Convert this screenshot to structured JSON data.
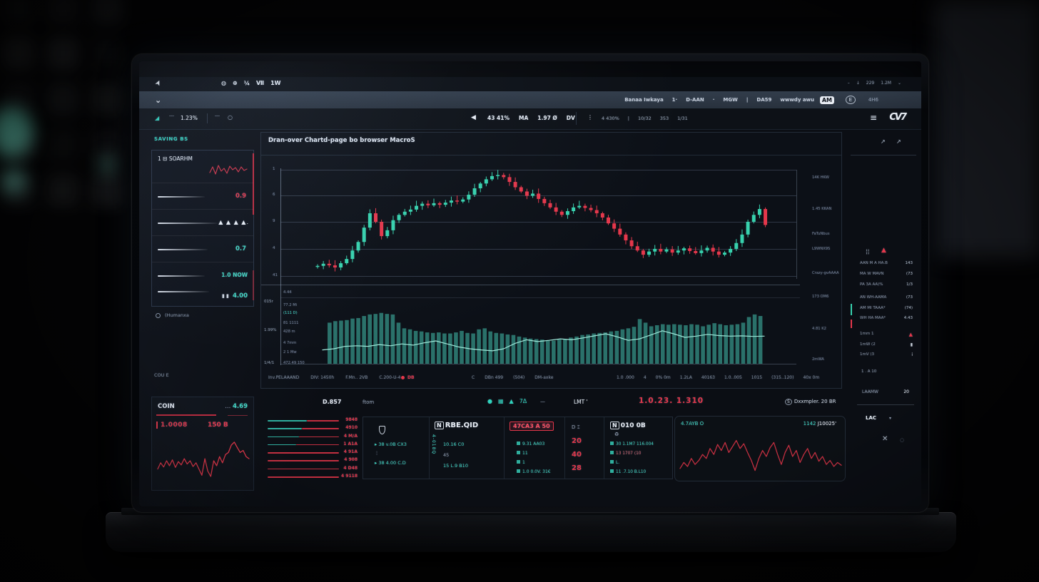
{
  "colors": {
    "teal": "#3fd6c2",
    "red": "#e4374b",
    "up": "#37d1ad",
    "down": "#e4374b",
    "volume_bar": "#2e7a72",
    "volume_line": "#9fe9da",
    "accent_red": "#b8293c"
  },
  "topbar": {
    "icons": [
      "◍",
      "⊕",
      "¼",
      "Ⅶ",
      "1W"
    ],
    "right_items": [
      "–",
      "↓",
      "229",
      "1.2M",
      "⌄"
    ]
  },
  "navbar": {
    "chevron": "⌄",
    "items": [
      "Banaa Iwkaya",
      "1·",
      "D-AAN",
      "·",
      "MGW",
      "|",
      "DA59",
      "wwwdy awu"
    ],
    "badge_text": "AM",
    "badge2_text": "E",
    "end_text": "4H6"
  },
  "toolbar": {
    "left_icon": "◢",
    "squiggle": "﹋",
    "left_pct": "1.23%",
    "circle": "○",
    "play_icon": "◀",
    "center_items": [
      "43 41%",
      "MA",
      "1.97 Ø",
      "DV"
    ],
    "dots_icon": "⋮",
    "right_items": [
      "4 430%",
      "|",
      "10/32",
      "353",
      "1/31"
    ],
    "menu_icon": "≡",
    "logo": "CV7"
  },
  "watch_label": "SAVING BS",
  "watch_panel": {
    "row1_title": "1 ⊟ SOARHM",
    "row2_value": "0.9",
    "row3_triangles": "▲ ▲ ▲ ▲.",
    "row4_value": "0.7",
    "row5_value": "1.0 NOW",
    "row6_bars": "▮ ▮",
    "row6_value": "4.00"
  },
  "left_misc": {
    "row1": "(Humanxa",
    "row2": "COU E"
  },
  "coin_card": {
    "title": "COIN",
    "dots": "...",
    "value": "4.69",
    "stat1": "1.0008",
    "stat2": "150 B"
  },
  "main_panel": {
    "title": "Dran-over Chartd-page bo browser MacroS",
    "y_ticks": [
      "1",
      "6",
      "9",
      "4",
      "41"
    ],
    "outer_labels": [
      "015r",
      "1.99%",
      "1/4/1"
    ],
    "vol_labels": [
      "4.44",
      "77.2 Mi",
      "(111 D)",
      "81 1111",
      "428 m",
      "4 7mm",
      "2 1 Mw",
      "472.49 150"
    ],
    "right_labels": [
      "14K HKW",
      "1.45 KKAN",
      "FaTuNbus",
      "L9WNX9S",
      "Crazy-gvAAAA",
      "173 OM6",
      "4.81 K2",
      "2mWA"
    ],
    "status_left": [
      "Inv.PELAAAND",
      "DIV: 1450h",
      "F.Mn.. 2VB",
      "C.200-U-4"
    ],
    "status_db": "DB",
    "status_mid": [
      "C",
      "DBn 499",
      "(504)",
      "DM-axke"
    ],
    "status_right": [
      "1.0 .000",
      "4",
      "0% 0m",
      "1.2LA",
      "40163",
      "1.0..005",
      "1015",
      "(315..120)",
      "40x 0m"
    ]
  },
  "right_panel": {
    "icon_bars": "¦¦",
    "alert_triangle": "▲",
    "stats_a": [
      {
        "label": "AAN M A HA.B",
        "value": "143"
      },
      {
        "label": "MA W MAVN",
        "value": "(73"
      },
      {
        "label": "PA 3A AA)%",
        "value": "1/3"
      }
    ],
    "stats_b": [
      {
        "label": "AN WH-AAMA",
        "value": "(73"
      },
      {
        "label": "AM MI TAAA*",
        "value": "(74)"
      },
      {
        "label": "WH HA MAA*",
        "value": "4.43"
      }
    ],
    "alerts": [
      {
        "label": "1mm 1",
        "icon": "▲"
      },
      {
        "label": "1mW (2",
        "icon": "▮"
      },
      {
        "label": "1mV (3",
        "icon": "i"
      }
    ],
    "footnote": "1 . A 10",
    "row_label": "LAAMW",
    "row_value": "20",
    "dropdown": "LAC",
    "dropdown_caret": "▾",
    "close_icon": "✕",
    "circle_icon": "◌"
  },
  "bottom": {
    "depth_header": "D.857",
    "orders_label": "ftom",
    "depth_rows": [
      {
        "teal": 0.62,
        "value": "9848"
      },
      {
        "teal": 0.55,
        "value": "4910"
      },
      {
        "teal": 0.5,
        "value": "4 M/A"
      },
      {
        "teal": 0.45,
        "value": "1 A1A"
      },
      {
        "teal": 0.0,
        "value": "4 91A"
      },
      {
        "teal": 0.0,
        "value": "4 908"
      },
      {
        "teal": 0.0,
        "value": "4 D48"
      },
      {
        "teal": 0.0,
        "value": "4 9118"
      }
    ],
    "icons": [
      "●",
      "▦",
      "▲",
      "7Δ"
    ],
    "dash": "—",
    "lmt": "LMT '",
    "big_red": "1.0.23. 1.310",
    "summary_badge": "S",
    "summary_text": "Dxxmpler. 20 BR",
    "col1_rows": [
      "38  v.0B CX3",
      "38  4.00 C.D"
    ],
    "col2_badge": "N",
    "col2_header": "RBE.QID",
    "col2_vertical": "4-018Q",
    "col2_rows": [
      "10.16 C0",
      "45",
      "15  L.9 B10"
    ],
    "col3_header": "47CA3 A 50",
    "col3_rows": [
      "9.31 AA03",
      "11",
      "1",
      "1.0 0.0V. 31€"
    ],
    "col4_header": "D ⑄",
    "col4_values": [
      "20",
      "40",
      "28"
    ],
    "col5_badge": "N",
    "col5_header": "010 0B",
    "col5_sub": "♻",
    "col5_rows": [
      "30 1.1M7 116.004",
      "13 1707 (10",
      "L.",
      "11 .7.10 B.L10"
    ],
    "spark_label": "4.7AYB O",
    "spark_value_teal": "1142",
    "spark_value_white": "J10025'"
  },
  "chart_data": [
    {
      "id": "main-candles",
      "type": "candlestick",
      "title": "Dran-over Chartd-page bo browser MacroS",
      "ylim": [
        0.45,
        0.75
      ],
      "gridline_values": [
        0.7,
        0.65,
        0.6,
        0.55,
        0.5
      ],
      "grid": true,
      "closes": [
        0.519,
        0.523,
        0.52,
        0.516,
        0.524,
        0.532,
        0.548,
        0.564,
        0.591,
        0.618,
        0.602,
        0.575,
        0.586,
        0.605,
        0.615,
        0.621,
        0.625,
        0.632,
        0.636,
        0.633,
        0.637,
        0.634,
        0.638,
        0.642,
        0.64,
        0.644,
        0.653,
        0.665,
        0.674,
        0.682,
        0.688,
        0.69,
        0.686,
        0.677,
        0.667,
        0.659,
        0.651,
        0.655,
        0.645,
        0.637,
        0.629,
        0.621,
        0.615,
        0.622,
        0.629,
        0.632,
        0.628,
        0.624,
        0.618,
        0.61,
        0.599,
        0.589,
        0.578,
        0.567,
        0.556,
        0.548,
        0.54,
        0.546,
        0.551,
        0.546,
        0.55,
        0.544,
        0.548,
        0.552,
        0.547,
        0.543,
        0.548,
        0.553,
        0.546,
        0.54,
        0.544,
        0.551,
        0.562,
        0.578,
        0.602,
        0.615,
        0.626,
        0.596
      ]
    },
    {
      "id": "volume",
      "type": "bar",
      "ylim": [
        0,
        100
      ],
      "values": [
        0,
        80,
        83,
        84,
        85,
        88,
        89,
        93,
        96,
        97,
        99,
        97,
        96,
        80,
        69,
        67,
        64,
        63,
        61,
        60,
        61,
        59,
        59,
        61,
        64,
        60,
        59,
        67,
        69,
        63,
        60,
        59,
        57,
        56,
        53,
        51,
        49,
        48,
        47,
        45,
        45,
        47,
        48,
        51,
        53,
        56,
        57,
        59,
        60,
        61,
        63,
        64,
        67,
        69,
        72,
        87,
        80,
        73,
        75,
        77,
        76,
        77,
        76,
        75,
        77,
        76,
        73,
        76,
        79,
        77,
        75,
        76,
        77,
        80,
        91,
        96,
        93,
        0
      ]
    },
    {
      "id": "volume-ma",
      "type": "line",
      "values": [
        0.92,
        0.88,
        0.8,
        0.78,
        0.8,
        0.74,
        0.78,
        0.72,
        0.76,
        0.68,
        0.62,
        0.72,
        0.82,
        0.88,
        0.92,
        0.95,
        0.88,
        0.7,
        0.58,
        0.64,
        0.6,
        0.55,
        0.58,
        0.52,
        0.45,
        0.38,
        0.48,
        0.6,
        0.55,
        0.42,
        0.28,
        0.38,
        0.5,
        0.46,
        0.4,
        0.44,
        0.46,
        0.45,
        0.47,
        0.46
      ]
    },
    {
      "id": "coin-spark",
      "type": "line",
      "values": [
        0.7,
        0.55,
        0.65,
        0.5,
        0.62,
        0.48,
        0.66,
        0.52,
        0.6,
        0.45,
        0.58,
        0.5,
        0.64,
        0.55,
        0.7,
        0.85,
        0.45,
        0.75,
        0.88,
        0.5,
        0.62,
        0.4,
        0.55,
        0.35,
        0.3,
        0.12,
        0.05,
        0.18,
        0.3,
        0.25,
        0.4,
        0.45
      ]
    },
    {
      "id": "bottom-spark",
      "type": "line",
      "values": [
        0.8,
        0.65,
        0.75,
        0.55,
        0.7,
        0.6,
        0.45,
        0.55,
        0.3,
        0.45,
        0.2,
        0.35,
        0.15,
        0.4,
        0.25,
        0.1,
        0.3,
        0.18,
        0.4,
        0.6,
        0.85,
        0.55,
        0.35,
        0.5,
        0.28,
        0.15,
        0.45,
        0.7,
        0.4,
        0.22,
        0.5,
        0.35,
        0.65,
        0.45,
        0.3,
        0.55,
        0.4,
        0.62,
        0.5,
        0.7,
        0.6,
        0.75,
        0.65,
        0.72
      ]
    },
    {
      "id": "watch-spark",
      "type": "line",
      "values": [
        0.75,
        0.35,
        0.85,
        0.25,
        0.65,
        0.45,
        0.8,
        0.3,
        0.55,
        0.4,
        0.7,
        0.35,
        0.6,
        0.5
      ]
    }
  ]
}
